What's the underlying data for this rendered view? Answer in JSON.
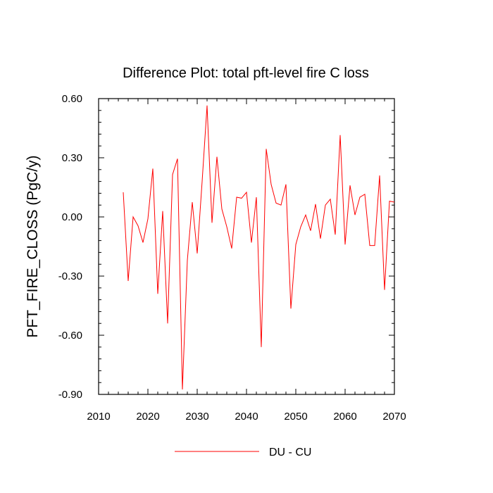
{
  "chart_data": {
    "type": "line",
    "title": "Difference Plot: total pft-level fire C loss",
    "xlabel": "",
    "ylabel": "PFT_FIRE_CLOSS  (PgC/y)",
    "xlim": [
      2010,
      2070
    ],
    "ylim": [
      -0.9,
      0.6
    ],
    "x_ticks": [
      2010,
      2020,
      2030,
      2040,
      2050,
      2060,
      2070
    ],
    "x_tick_labels": [
      "2010",
      "2020",
      "2030",
      "2040",
      "2050",
      "2060",
      "2070"
    ],
    "y_ticks": [
      0.6,
      0.3,
      0.0,
      -0.3,
      -0.6,
      -0.9
    ],
    "y_tick_labels": [
      "0.60",
      "0.30",
      "0.00",
      "-0.30",
      "-0.60",
      "-0.90"
    ],
    "x_minor_step": 2,
    "y_minor_step": 0.06,
    "grid": false,
    "legend_position": "bottom-center",
    "series": [
      {
        "name": "DU - CU",
        "color": "#ff0000",
        "x": [
          2015,
          2016,
          2017,
          2018,
          2019,
          2020,
          2021,
          2022,
          2023,
          2024,
          2025,
          2026,
          2027,
          2028,
          2029,
          2030,
          2031,
          2032,
          2033,
          2034,
          2035,
          2036,
          2037,
          2038,
          2039,
          2040,
          2041,
          2042,
          2043,
          2044,
          2045,
          2046,
          2047,
          2048,
          2049,
          2050,
          2051,
          2052,
          2053,
          2054,
          2055,
          2056,
          2057,
          2058,
          2059,
          2060,
          2061,
          2062,
          2063,
          2064,
          2065,
          2066,
          2067,
          2068,
          2069,
          2070
        ],
        "values": [
          0.125,
          -0.325,
          0.0,
          -0.045,
          -0.13,
          -0.01,
          0.245,
          -0.39,
          0.03,
          -0.54,
          0.215,
          0.295,
          -0.875,
          -0.22,
          0.075,
          -0.185,
          0.18,
          0.565,
          -0.03,
          0.305,
          0.04,
          -0.05,
          -0.16,
          0.1,
          0.095,
          0.125,
          -0.13,
          0.1,
          -0.66,
          0.345,
          0.165,
          0.07,
          0.06,
          0.165,
          -0.465,
          -0.14,
          -0.05,
          0.01,
          -0.07,
          0.065,
          -0.11,
          0.06,
          0.09,
          -0.09,
          0.415,
          -0.14,
          0.16,
          0.01,
          0.1,
          0.115,
          -0.145,
          -0.145,
          0.21,
          -0.37,
          0.08,
          0.075
        ]
      }
    ]
  }
}
